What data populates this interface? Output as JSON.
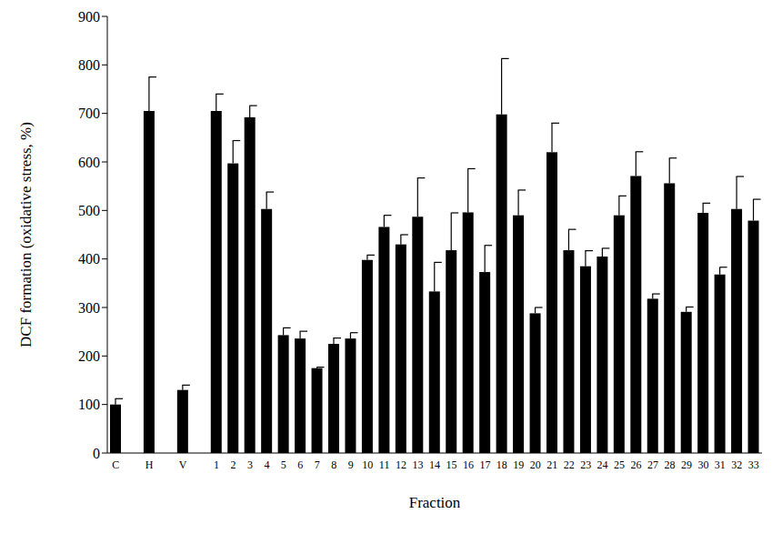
{
  "chart_data": {
    "type": "bar",
    "x_label": "Fraction",
    "y_label": "DCF formation (oxidative stress, %)",
    "categories": [
      "C",
      null,
      "H",
      null,
      "V",
      null,
      "1",
      "2",
      "3",
      "4",
      "5",
      "6",
      "7",
      "8",
      "9",
      "10",
      "11",
      "12",
      "13",
      "14",
      "15",
      "16",
      "17",
      "18",
      "19",
      "20",
      "21",
      "22",
      "23",
      "24",
      "25",
      "26",
      "27",
      "28",
      "29",
      "30",
      "31",
      "32",
      "33"
    ],
    "values": [
      100,
      null,
      705,
      null,
      130,
      null,
      705,
      597,
      692,
      503,
      243,
      236,
      175,
      225,
      236,
      398,
      466,
      430,
      487,
      333,
      418,
      496,
      373,
      698,
      490,
      288,
      620,
      418,
      385,
      405,
      490,
      571,
      318,
      556,
      291,
      495,
      368,
      503,
      479
    ],
    "errors": [
      12,
      null,
      70,
      null,
      10,
      null,
      35,
      47,
      24,
      35,
      15,
      15,
      2,
      12,
      12,
      10,
      24,
      20,
      80,
      60,
      77,
      90,
      55,
      115,
      52,
      12,
      60,
      43,
      32,
      17,
      40,
      50,
      10,
      52,
      10,
      20,
      15,
      67,
      44
    ],
    "color": "#000000",
    "ylim": [
      0,
      900
    ],
    "yticks": [
      0,
      100,
      200,
      300,
      400,
      500,
      600,
      700,
      800,
      900
    ],
    "grid": false
  }
}
